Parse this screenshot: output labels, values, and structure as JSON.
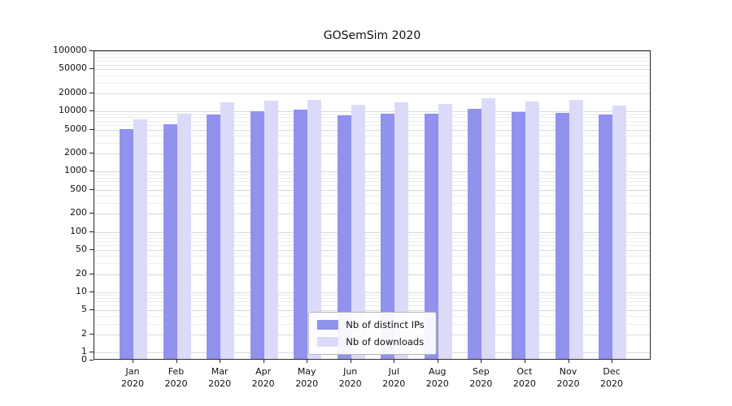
{
  "chart_data": {
    "type": "bar",
    "title": "GOSemSim 2020",
    "categories": [
      "Jan",
      "Feb",
      "Mar",
      "Apr",
      "May",
      "Jun",
      "Jul",
      "Aug",
      "Sep",
      "Oct",
      "Nov",
      "Dec"
    ],
    "year": "2020",
    "series": [
      {
        "name": "Nb of distinct IPs",
        "color": "#9191ee",
        "values": [
          4800,
          5700,
          8400,
          9500,
          10100,
          8000,
          8700,
          8700,
          10400,
          9200,
          8900,
          8400
        ]
      },
      {
        "name": "Nb of downloads",
        "color": "#dbdbf9",
        "values": [
          7000,
          8700,
          13200,
          14000,
          14500,
          12000,
          13200,
          12400,
          15400,
          13600,
          14400,
          11700
        ]
      }
    ],
    "yscale": "log",
    "ylim": [
      0,
      100000
    ],
    "ytick_labels": [
      "0",
      "1",
      "2",
      "5",
      "10",
      "20",
      "50",
      "100",
      "200",
      "500",
      "1000",
      "2000",
      "5000",
      "10000",
      "20000",
      "50000",
      "100000"
    ],
    "grid": "horizontal",
    "legend_position": "lower-center"
  }
}
